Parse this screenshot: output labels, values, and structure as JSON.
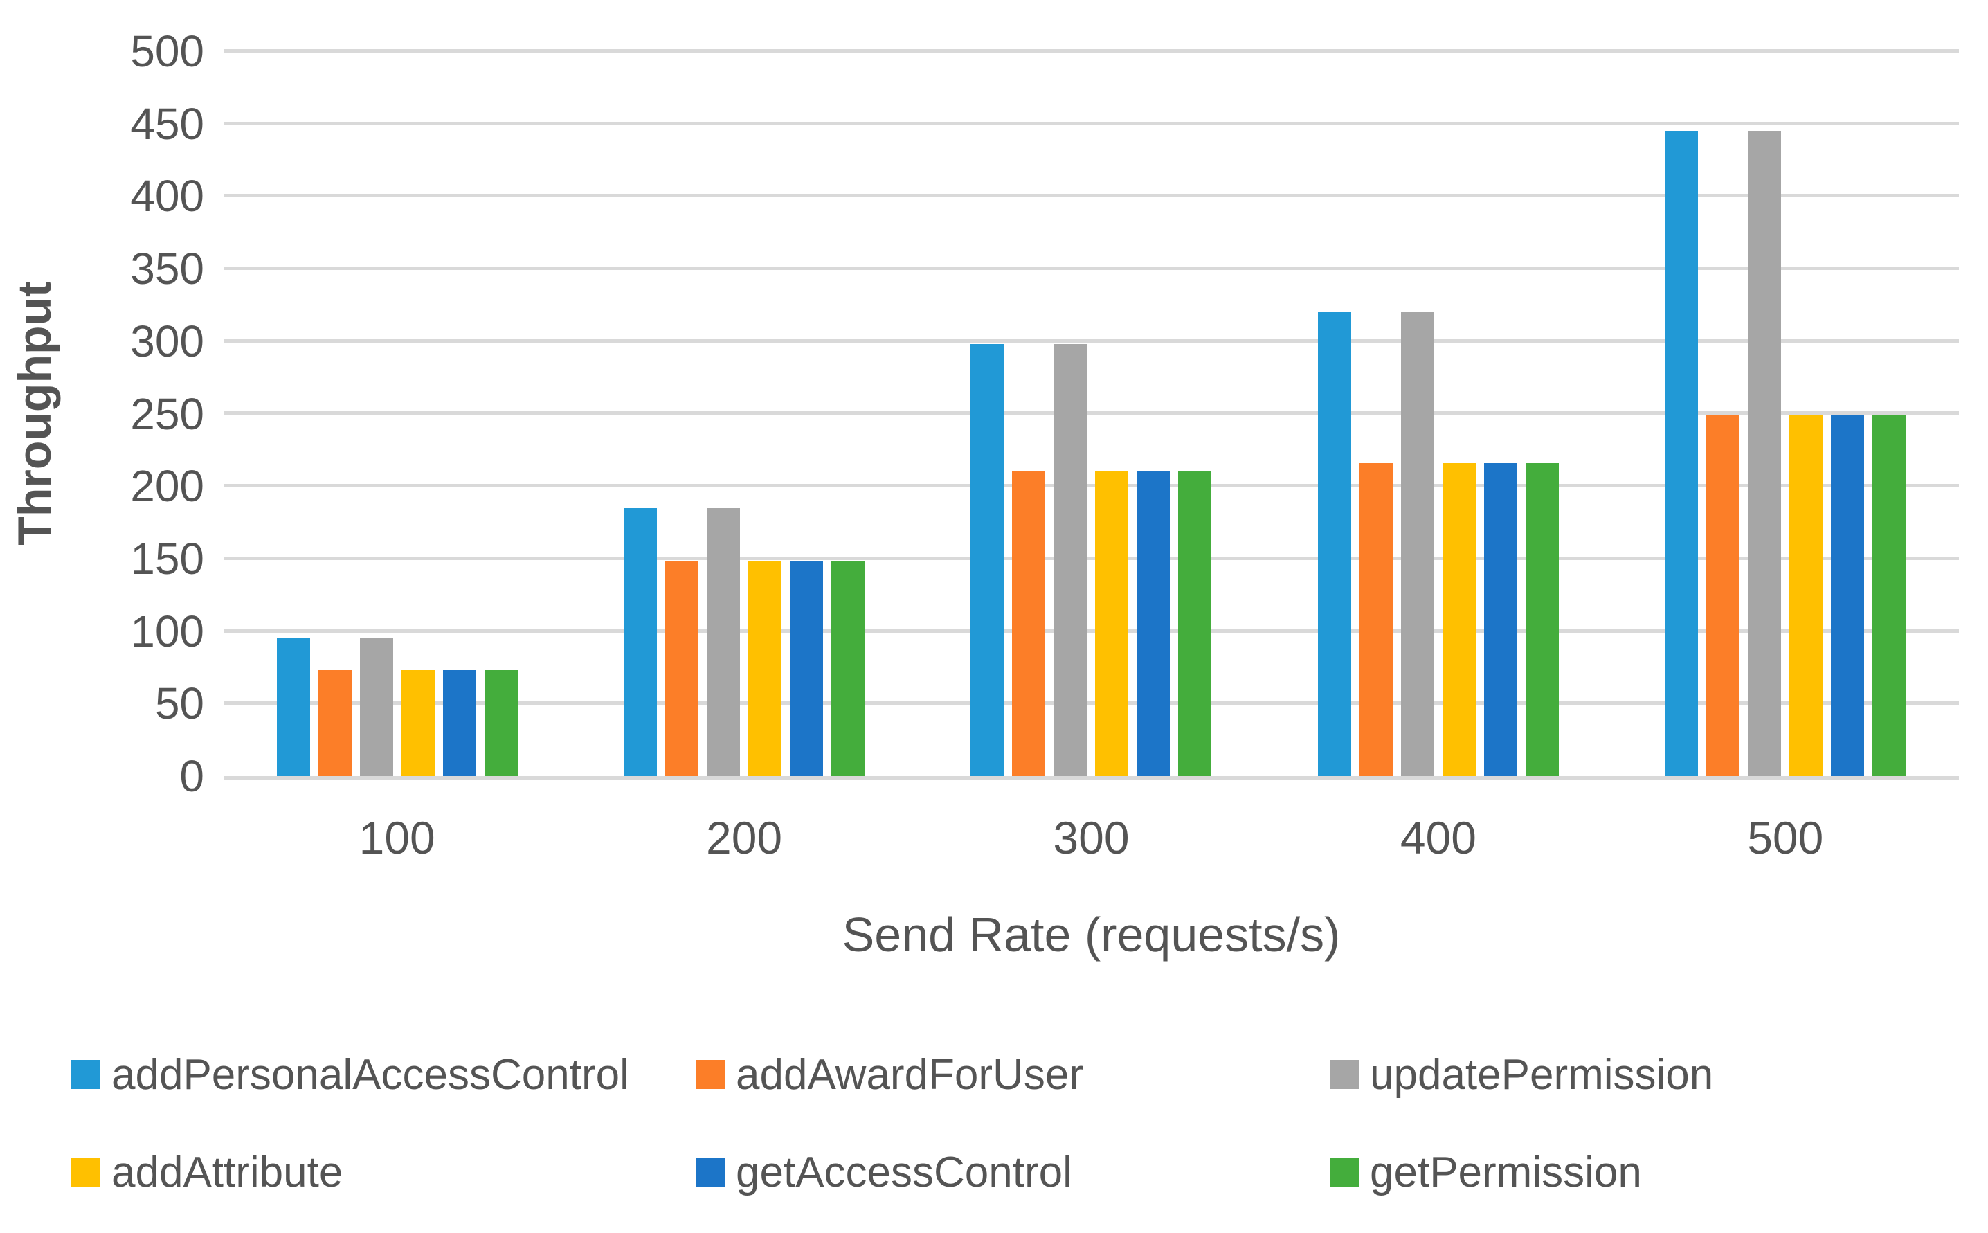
{
  "chart_data": {
    "type": "bar",
    "title": "",
    "xlabel": "Send Rate (requests/s)",
    "ylabel": "Throughput",
    "categories": [
      "100",
      "200",
      "300",
      "400",
      "500"
    ],
    "series": [
      {
        "name": "addPersonalAccessControl",
        "color": "#2199D6",
        "values": [
          95,
          185,
          298,
          320,
          445
        ]
      },
      {
        "name": "addAwardForUser",
        "color": "#FC7E28",
        "values": [
          73,
          148,
          210,
          216,
          249
        ]
      },
      {
        "name": "updatePermission",
        "color": "#A6A6A6",
        "values": [
          95,
          185,
          298,
          320,
          445
        ]
      },
      {
        "name": "addAttribute",
        "color": "#FFC000",
        "values": [
          73,
          148,
          210,
          216,
          249
        ]
      },
      {
        "name": "getAccessControl",
        "color": "#1C75C8",
        "values": [
          73,
          148,
          210,
          216,
          249
        ]
      },
      {
        "name": "getPermission",
        "color": "#44AD3C",
        "values": [
          73,
          148,
          210,
          216,
          249
        ]
      }
    ],
    "ylim": [
      0,
      500
    ],
    "ytick_step": 50,
    "yticks": [
      "0",
      "50",
      "100",
      "150",
      "200",
      "250",
      "300",
      "350",
      "400",
      "450",
      "500"
    ],
    "grid": "horizontal-only",
    "gridline_color": "#D9D9D9",
    "text_color": "#545454",
    "legend_position": "bottom",
    "legend_rows": 2,
    "legend_columns": 3
  }
}
